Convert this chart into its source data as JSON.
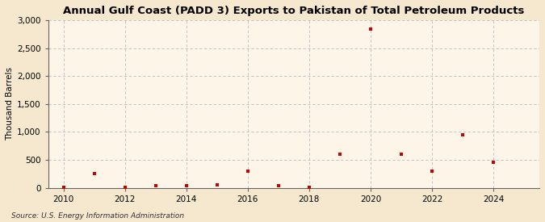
{
  "title": "Annual Gulf Coast (PADD 3) Exports to Pakistan of Total Petroleum Products",
  "ylabel": "Thousand Barrels",
  "source": "Source: U.S. Energy Information Administration",
  "background_color": "#f5e8cf",
  "plot_background_color": "#fdf6e8",
  "marker_color": "#cc0000",
  "years": [
    2010,
    2011,
    2012,
    2013,
    2014,
    2015,
    2016,
    2017,
    2018,
    2019,
    2020,
    2021,
    2022,
    2023,
    2024
  ],
  "values": [
    2,
    250,
    5,
    30,
    30,
    50,
    290,
    30,
    5,
    600,
    2850,
    600,
    290,
    950,
    460
  ],
  "ylim": [
    0,
    3000
  ],
  "yticks": [
    0,
    500,
    1000,
    1500,
    2000,
    2500,
    3000
  ],
  "xlim": [
    2009.5,
    2025.5
  ],
  "xticks": [
    2010,
    2012,
    2014,
    2016,
    2018,
    2020,
    2022,
    2024
  ],
  "grid_color": "#bbbbbb",
  "title_fontsize": 9.5,
  "label_fontsize": 7.5,
  "tick_fontsize": 7.5,
  "source_fontsize": 6.5
}
